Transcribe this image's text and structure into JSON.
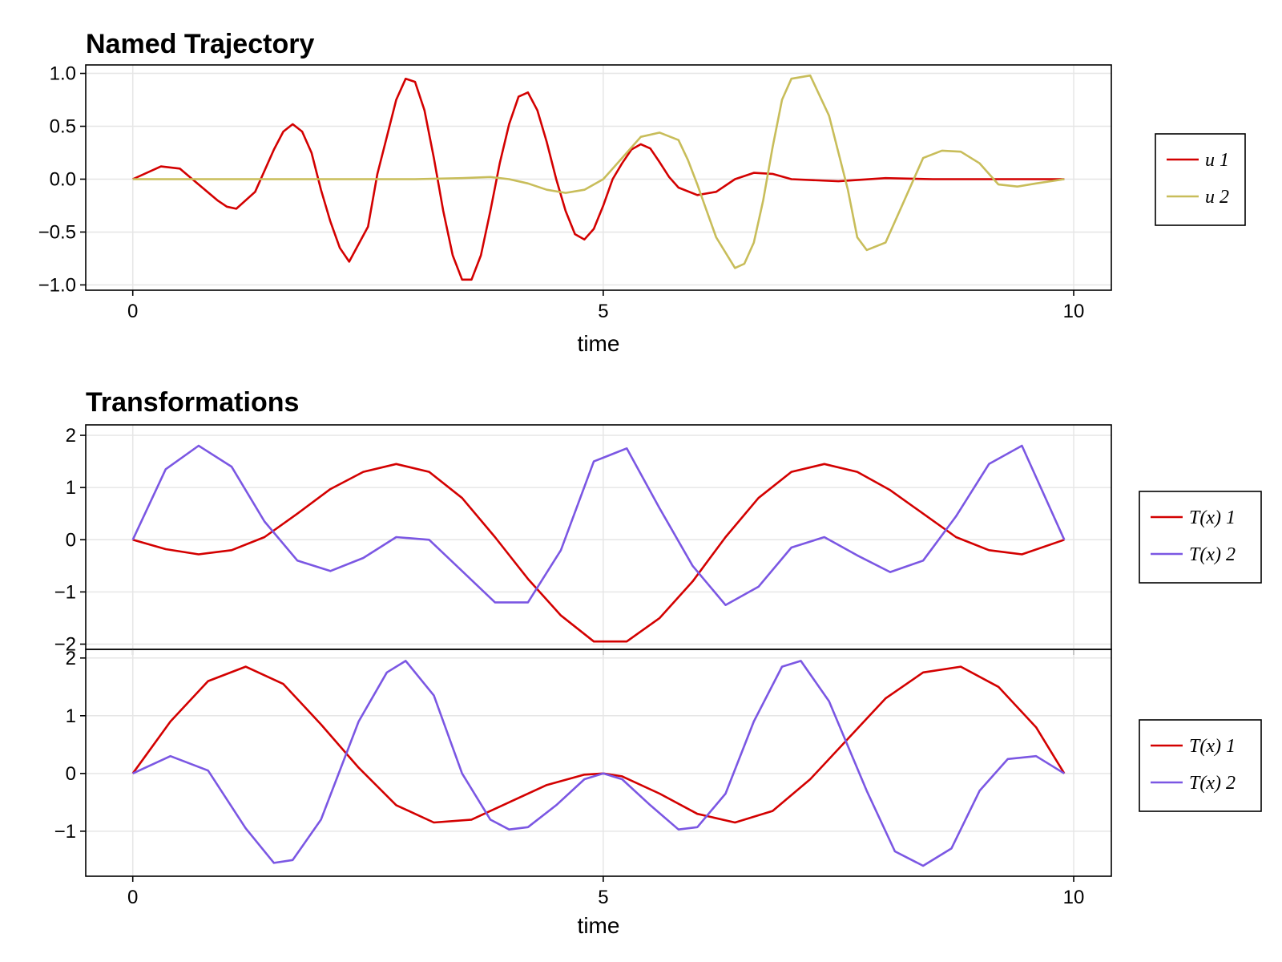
{
  "chart_data": [
    {
      "type": "line",
      "title": "Named Trajectory",
      "xlabel": "time",
      "ylabel": "",
      "xlim": [
        -0.5,
        10.4
      ],
      "ylim": [
        -1.05,
        1.08
      ],
      "xticks": [
        0,
        5,
        10
      ],
      "yticks": [
        -1.0,
        -0.5,
        0.0,
        0.5,
        1.0
      ],
      "ytick_labels": [
        "−1.0",
        "−0.5",
        "0.0",
        "0.5",
        "1.0"
      ],
      "grid": true,
      "legend": "right",
      "series": [
        {
          "name": "u 1",
          "color": "#d30000",
          "x": [
            0,
            0.3,
            0.5,
            0.7,
            0.9,
            1.0,
            1.1,
            1.3,
            1.5,
            1.6,
            1.7,
            1.8,
            1.9,
            2.0,
            2.1,
            2.2,
            2.3,
            2.5,
            2.6,
            2.7,
            2.8,
            2.9,
            3.0,
            3.1,
            3.2,
            3.3,
            3.4,
            3.5,
            3.6,
            3.7,
            3.8,
            3.9,
            4.0,
            4.1,
            4.2,
            4.3,
            4.4,
            4.5,
            4.6,
            4.7,
            4.8,
            4.9,
            5.0,
            5.1,
            5.2,
            5.3,
            5.4,
            5.5,
            5.6,
            5.7,
            5.8,
            6.0,
            6.2,
            6.4,
            6.6,
            6.8,
            7.0,
            7.5,
            8.0,
            8.5,
            9.0,
            9.5,
            9.9
          ],
          "y": [
            0,
            0.12,
            0.1,
            -0.05,
            -0.2,
            -0.26,
            -0.28,
            -0.12,
            0.28,
            0.45,
            0.52,
            0.45,
            0.25,
            -0.1,
            -0.4,
            -0.65,
            -0.78,
            -0.45,
            0.05,
            0.4,
            0.75,
            0.95,
            0.92,
            0.65,
            0.2,
            -0.3,
            -0.72,
            -0.95,
            -0.95,
            -0.72,
            -0.3,
            0.15,
            0.52,
            0.78,
            0.82,
            0.65,
            0.35,
            0.0,
            -0.3,
            -0.52,
            -0.57,
            -0.47,
            -0.25,
            0.0,
            0.15,
            0.28,
            0.33,
            0.29,
            0.16,
            0.02,
            -0.08,
            -0.15,
            -0.12,
            0.0,
            0.06,
            0.05,
            0.0,
            -0.02,
            0.01,
            0.0,
            0.0,
            0.0,
            0.0
          ]
        },
        {
          "name": "u 2",
          "color": "#c8bd5a",
          "x": [
            0,
            0.5,
            1.0,
            1.5,
            2.0,
            2.5,
            3.0,
            3.5,
            3.8,
            4.0,
            4.2,
            4.4,
            4.6,
            4.8,
            5.0,
            5.2,
            5.4,
            5.6,
            5.8,
            5.9,
            6.0,
            6.1,
            6.2,
            6.4,
            6.5,
            6.6,
            6.7,
            6.8,
            6.9,
            7.0,
            7.2,
            7.4,
            7.6,
            7.7,
            7.8,
            8.0,
            8.2,
            8.4,
            8.6,
            8.8,
            9.0,
            9.2,
            9.4,
            9.6,
            9.9
          ],
          "y": [
            0,
            0,
            0,
            0,
            0,
            0,
            0,
            0.01,
            0.02,
            0.0,
            -0.04,
            -0.1,
            -0.13,
            -0.1,
            0.0,
            0.2,
            0.4,
            0.44,
            0.37,
            0.18,
            -0.05,
            -0.3,
            -0.55,
            -0.84,
            -0.8,
            -0.6,
            -0.2,
            0.3,
            0.75,
            0.95,
            0.98,
            0.6,
            -0.1,
            -0.55,
            -0.67,
            -0.6,
            -0.2,
            0.2,
            0.27,
            0.26,
            0.15,
            -0.05,
            -0.07,
            -0.04,
            0.0
          ]
        }
      ]
    },
    {
      "type": "line",
      "title": "Transformations",
      "xlabel": "",
      "ylabel": "",
      "xlim": [
        -0.5,
        10.4
      ],
      "ylim": [
        -2.1,
        2.2
      ],
      "xticks": [
        0,
        5,
        10
      ],
      "yticks": [
        -2,
        -1,
        0,
        1,
        2
      ],
      "ytick_labels": [
        "−2",
        "−1",
        "0",
        "1",
        "2"
      ],
      "grid": true,
      "legend": "right",
      "series": [
        {
          "name": "T(x) 1",
          "color": "#d30000",
          "x": [
            0,
            0.35,
            0.7,
            1.05,
            1.4,
            1.75,
            2.1,
            2.45,
            2.8,
            3.15,
            3.5,
            3.85,
            4.2,
            4.55,
            4.9,
            5.25,
            5.6,
            5.95,
            6.3,
            6.65,
            7.0,
            7.35,
            7.7,
            8.05,
            8.4,
            8.75,
            9.1,
            9.45,
            9.9
          ],
          "y": [
            0,
            -0.18,
            -0.28,
            -0.2,
            0.05,
            0.5,
            0.97,
            1.3,
            1.45,
            1.3,
            0.8,
            0.05,
            -0.75,
            -1.45,
            -1.95,
            -1.95,
            -1.5,
            -0.8,
            0.05,
            0.8,
            1.3,
            1.45,
            1.3,
            0.95,
            0.5,
            0.05,
            -0.2,
            -0.28,
            0.0
          ]
        },
        {
          "name": "T(x) 2",
          "color": "#7b57e3",
          "x": [
            0,
            0.35,
            0.7,
            1.05,
            1.4,
            1.75,
            2.1,
            2.45,
            2.8,
            3.15,
            3.5,
            3.85,
            4.2,
            4.55,
            4.9,
            5.25,
            5.6,
            5.95,
            6.3,
            6.65,
            7.0,
            7.35,
            7.7,
            8.05,
            8.4,
            8.75,
            9.1,
            9.45,
            9.9
          ],
          "y": [
            0,
            1.35,
            1.8,
            1.4,
            0.35,
            -0.4,
            -0.6,
            -0.35,
            0.05,
            0.0,
            -0.6,
            -1.2,
            -1.2,
            -0.2,
            1.5,
            1.75,
            0.6,
            -0.5,
            -1.25,
            -0.9,
            -0.15,
            0.05,
            -0.3,
            -0.62,
            -0.4,
            0.45,
            1.45,
            1.8,
            0.0
          ]
        }
      ]
    },
    {
      "type": "line",
      "title": "",
      "xlabel": "time",
      "ylabel": "",
      "xlim": [
        -0.5,
        10.4
      ],
      "ylim": [
        -1.78,
        2.15
      ],
      "xticks": [
        0,
        5,
        10
      ],
      "yticks": [
        -1,
        0,
        1,
        2
      ],
      "ytick_labels": [
        "−1",
        "0",
        "1",
        "2"
      ],
      "grid": true,
      "legend": "right",
      "series": [
        {
          "name": "T(x) 1",
          "color": "#d30000",
          "x": [
            0,
            0.4,
            0.8,
            1.2,
            1.6,
            2.0,
            2.4,
            2.8,
            3.2,
            3.6,
            4.0,
            4.4,
            4.8,
            5.0,
            5.2,
            5.6,
            6.0,
            6.4,
            6.8,
            7.2,
            7.6,
            8.0,
            8.4,
            8.8,
            9.2,
            9.6,
            9.9
          ],
          "y": [
            0,
            0.9,
            1.6,
            1.85,
            1.55,
            0.85,
            0.1,
            -0.55,
            -0.85,
            -0.8,
            -0.5,
            -0.2,
            -0.02,
            0.0,
            -0.05,
            -0.35,
            -0.7,
            -0.85,
            -0.65,
            -0.1,
            0.6,
            1.3,
            1.75,
            1.85,
            1.5,
            0.8,
            0.0
          ]
        },
        {
          "name": "T(x) 2",
          "color": "#7b57e3",
          "x": [
            0,
            0.4,
            0.8,
            1.2,
            1.5,
            1.7,
            2.0,
            2.4,
            2.7,
            2.9,
            3.2,
            3.5,
            3.8,
            4.0,
            4.2,
            4.5,
            4.8,
            5.0,
            5.2,
            5.5,
            5.8,
            6.0,
            6.3,
            6.6,
            6.9,
            7.1,
            7.4,
            7.8,
            8.1,
            8.4,
            8.7,
            9.0,
            9.3,
            9.6,
            9.9
          ],
          "y": [
            0,
            0.3,
            0.05,
            -0.95,
            -1.55,
            -1.5,
            -0.8,
            0.9,
            1.75,
            1.95,
            1.35,
            0.0,
            -0.8,
            -0.97,
            -0.93,
            -0.55,
            -0.1,
            0.0,
            -0.1,
            -0.55,
            -0.97,
            -0.93,
            -0.35,
            0.9,
            1.85,
            1.95,
            1.25,
            -0.3,
            -1.35,
            -1.6,
            -1.3,
            -0.3,
            0.25,
            0.3,
            0.0
          ]
        }
      ]
    }
  ]
}
